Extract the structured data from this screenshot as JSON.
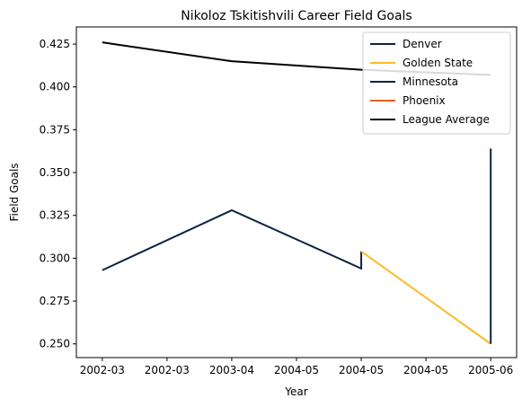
{
  "chart_data": {
    "type": "line",
    "title": "Nikoloz Tskitishvili Career Field Goals",
    "xlabel": "Year",
    "ylabel": "Field Goals",
    "x_tick_labels": [
      "2002-03",
      "2002-03",
      "2003-04",
      "2004-05",
      "2004-05",
      "2004-05",
      "2005-06"
    ],
    "xlim": [
      -0.2,
      3.2
    ],
    "ylim": [
      0.242,
      0.435
    ],
    "y_ticks": [
      0.25,
      0.275,
      0.3,
      0.325,
      0.35,
      0.375,
      0.4,
      0.425
    ],
    "y_tick_labels": [
      "0.250",
      "0.275",
      "0.300",
      "0.325",
      "0.350",
      "0.375",
      "0.400",
      "0.425"
    ],
    "legend_position": "top-right",
    "grid": false,
    "series": [
      {
        "name": "Denver",
        "color": "#0e2240",
        "points": [
          [
            0,
            0.293
          ],
          [
            1,
            0.328
          ],
          [
            2,
            0.294
          ],
          [
            2,
            0.304
          ]
        ]
      },
      {
        "name": "Golden State",
        "color": "#fdb927",
        "points": [
          [
            2,
            0.304
          ],
          [
            3,
            0.25
          ]
        ]
      },
      {
        "name": "Minnesota",
        "color": "#0c2340",
        "points": [
          [
            3,
            0.25
          ],
          [
            3,
            0.364
          ]
        ]
      },
      {
        "name": "Phoenix",
        "color": "#e56020",
        "points": []
      },
      {
        "name": "League Average",
        "color": "#000000",
        "points": [
          [
            0,
            0.426
          ],
          [
            1,
            0.415
          ],
          [
            2,
            0.41
          ],
          [
            3,
            0.407
          ]
        ]
      }
    ]
  }
}
